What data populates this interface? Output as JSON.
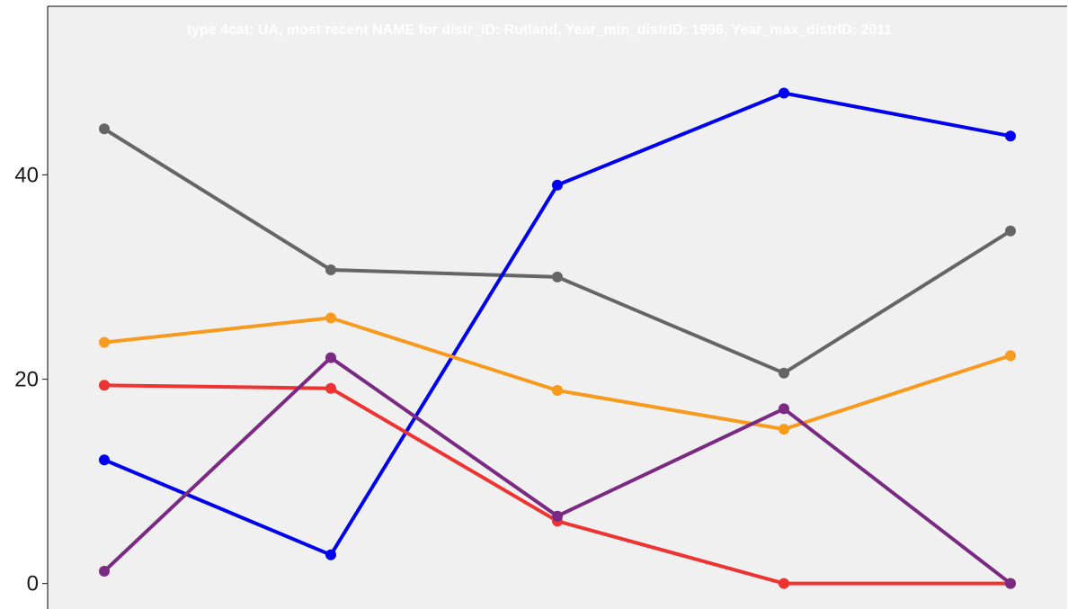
{
  "chart_data": {
    "type": "line",
    "title": "type 4cat: UA, most recent NAME for distr_ID: Rutland, Year_min_distrID: 1996,  Year_max_distrID: 2011",
    "xlabel": "",
    "ylabel": "",
    "ylim": [
      -2.5,
      56.5
    ],
    "yticks": [
      0,
      20,
      40
    ],
    "x": [
      1,
      2,
      3,
      4,
      5
    ],
    "xlim": [
      0.75,
      5.25
    ],
    "grid": false,
    "background": "#f0f0f0",
    "series": [
      {
        "color": "#666666",
        "values": [
          44.5,
          30.7,
          30.0,
          20.6,
          34.5
        ]
      },
      {
        "color": "#0000ee",
        "values": [
          12.1,
          2.8,
          39.0,
          48.0,
          43.8
        ]
      },
      {
        "color": "#f79a1e",
        "values": [
          23.6,
          26.0,
          18.9,
          15.1,
          22.3
        ]
      },
      {
        "color": "#ee3333",
        "values": [
          19.4,
          19.1,
          6.1,
          0.0,
          0.0
        ]
      },
      {
        "color": "#7a2a82",
        "values": [
          1.2,
          22.1,
          6.6,
          17.1,
          0.0
        ]
      }
    ]
  }
}
